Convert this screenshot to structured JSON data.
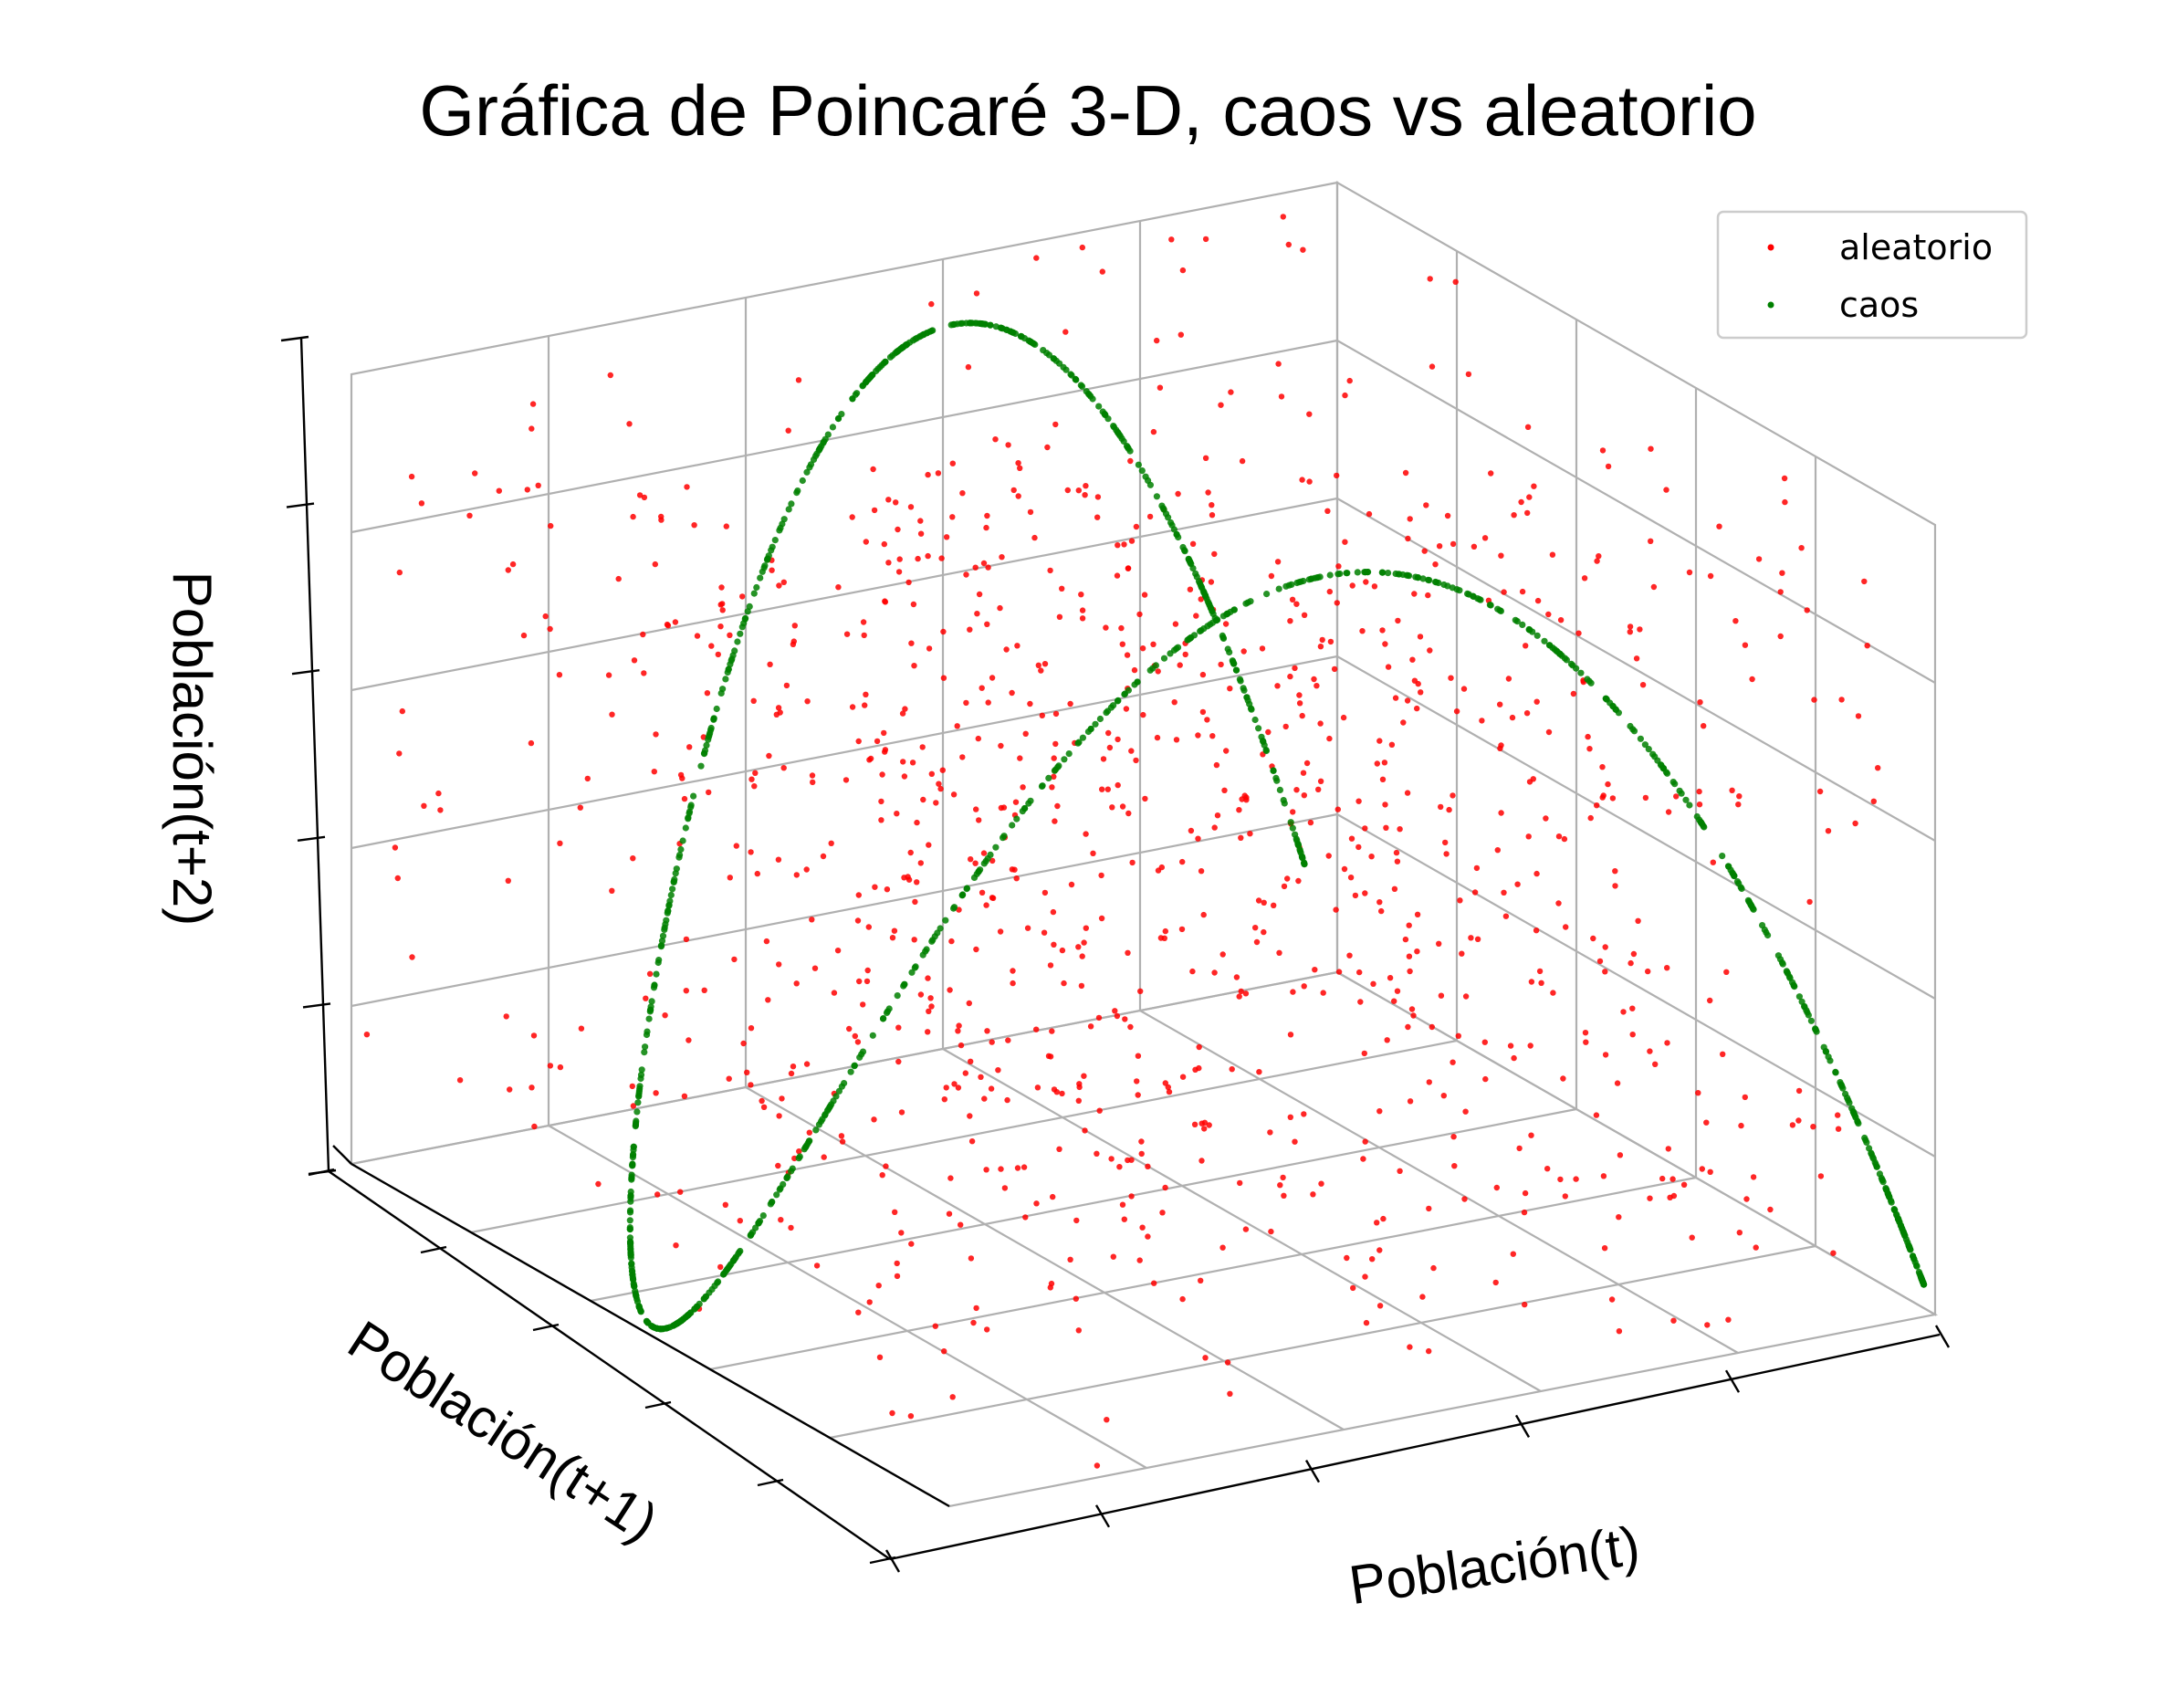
{
  "chart_data": {
    "type": "scatter",
    "projection": "3d",
    "title": "Gráfica de Poincaré 3-D, caos vs aleatorio",
    "xlabel": "Población(t)",
    "ylabel": "Población(t+1)",
    "zlabel": "Población(t+2)",
    "xlim": [
      0,
      1
    ],
    "ylim": [
      0,
      1
    ],
    "zlim": [
      0,
      1
    ],
    "grid": true,
    "tick_labels_visible": false,
    "legend": {
      "position": "top-right",
      "entries": [
        "aleatorio",
        "caos"
      ]
    },
    "series": [
      {
        "name": "aleatorio",
        "color": "#ff0000",
        "marker": "dot",
        "distribution": "uniform-random",
        "count": 1000,
        "seed": 7
      },
      {
        "name": "caos",
        "color": "#008000",
        "marker": "dot",
        "map": "logistic",
        "r": 3.99,
        "x0": 0.1,
        "count": 1000
      }
    ]
  }
}
